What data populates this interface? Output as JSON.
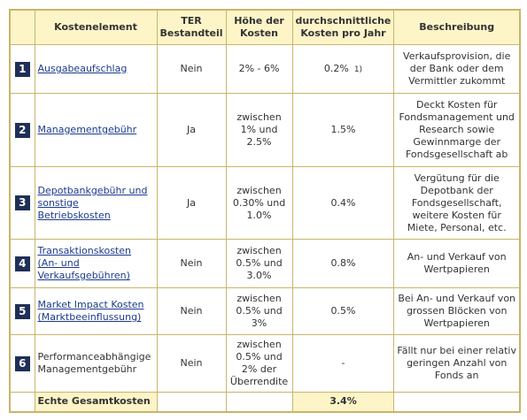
{
  "table": {
    "headers": [
      "Kostenelement",
      "TER Bestandteil",
      "Höhe der Kosten",
      "durchschnittliche Kosten pro Jahr",
      "Beschreibung"
    ],
    "rows": [
      {
        "number": "1",
        "element": "Ausgabeaufschlag",
        "link": true,
        "ter": "Nein",
        "hoehe": "2% - 6%",
        "kosten": "0.2%",
        "note": "1)",
        "beschreibung": "Verkaufsprovision, die der Bank oder dem Vermittler zukommt"
      },
      {
        "number": "2",
        "element": "Managementgebühr",
        "link": true,
        "ter": "Ja",
        "hoehe": "zwischen 1% und 2.5%",
        "kosten": "1.5%",
        "beschreibung": "Deckt Kosten für Fondsmanagement und Research sowie Gewinnmarge der Fonds­gesellschaft ab"
      },
      {
        "number": "3",
        "element": "Depotbankgebühr und sonstige Betriebskosten",
        "link": true,
        "ter": "Ja",
        "hoehe": "zwischen 0.30% und 1.0%",
        "kosten": "0.4%",
        "beschreibung": "Vergütung für die Depotbank der Fondsgesellschaft, weitere Kosten für Miete, Personal, etc."
      },
      {
        "number": "4",
        "element": "Transaktionskosten (An- und Verkaufsgebühren)",
        "link": true,
        "ter": "Nein",
        "hoehe": "zwischen 0.5% und 3.0%",
        "kosten": "0.8%",
        "beschreibung": "An- und Verkauf von Wertpapieren"
      },
      {
        "number": "5",
        "element": "Market Impact Kosten (Marktbeeinflussung)",
        "link": true,
        "ter": "Nein",
        "hoehe": "zwischen 0.5% und 3%",
        "kosten": "0.5%",
        "beschreibung": "Bei An- und Verkauf von grossen Blöcken von Wertpapieren"
      },
      {
        "number": "6",
        "element": "Performanceabhängige Managementgebühr",
        "link": false,
        "ter": "Nein",
        "hoehe": "zwischen 0.5% und 2% der Überrendite",
        "kosten": "-",
        "beschreibung": "Fällt nur bei einer relativ geringen Anzahl von Fonds an"
      }
    ],
    "total": {
      "label": "Echte Gesamtkosten",
      "value": "3.4%"
    }
  }
}
